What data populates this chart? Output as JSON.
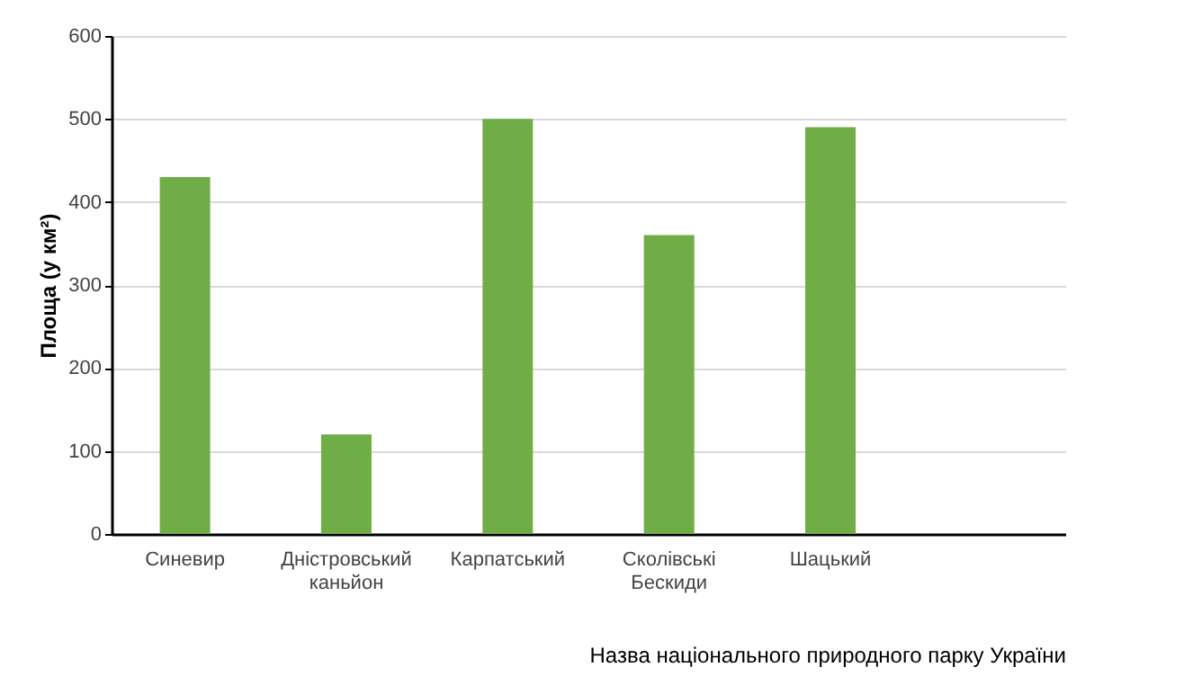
{
  "chart_data": {
    "type": "bar",
    "xlabel": "Назва національного природного парку України",
    "ylabel": "Площа (у км²)",
    "categories": [
      "Синевир",
      "Дністровський каньйон",
      "Карпатський",
      "Сколівські Бескиди",
      "Шацький",
      null
    ],
    "values": [
      430,
      120,
      500,
      360,
      490,
      null
    ],
    "color": "#70ad47",
    "ylim": [
      0,
      600
    ],
    "yticks": [
      0,
      100,
      200,
      300,
      400,
      500,
      600
    ],
    "grid": "y"
  }
}
